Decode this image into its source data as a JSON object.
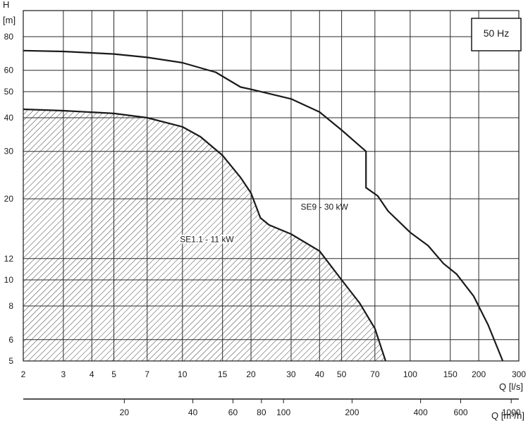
{
  "chart_data": {
    "type": "line",
    "x_scale": "log",
    "y_scale": "log",
    "xlim": [
      2,
      300
    ],
    "ylim": [
      5,
      100
    ],
    "grid": true,
    "xlabel": "Q [l/s]",
    "ylabel_top": "H",
    "ylabel_unit": "[m]",
    "x2label": "Q [m³/h]",
    "x_ticks": [
      2,
      3,
      4,
      5,
      7,
      10,
      15,
      20,
      30,
      40,
      50,
      70,
      100,
      150,
      200,
      300
    ],
    "y_ticks": [
      5,
      6,
      8,
      10,
      12,
      20,
      30,
      40,
      50,
      60,
      80
    ],
    "x2_ticks": [
      20,
      40,
      60,
      80,
      100,
      200,
      400,
      600,
      1000
    ],
    "badge": "50 Hz",
    "series": [
      {
        "name": "SE1.1 - 11 kW",
        "hatched": true,
        "points": [
          [
            2,
            43
          ],
          [
            3,
            42.5
          ],
          [
            5,
            41.5
          ],
          [
            7,
            40
          ],
          [
            10,
            37
          ],
          [
            12,
            34
          ],
          [
            15,
            29
          ],
          [
            18,
            24
          ],
          [
            20,
            21
          ],
          [
            22,
            17
          ],
          [
            24,
            16
          ],
          [
            30,
            14.8
          ],
          [
            40,
            12.8
          ],
          [
            50,
            10
          ],
          [
            60,
            8.2
          ],
          [
            70,
            6.6
          ],
          [
            78,
            5
          ]
        ]
      },
      {
        "name": "SE9 - 30 kW",
        "hatched": false,
        "points": [
          [
            2,
            71
          ],
          [
            3,
            70.5
          ],
          [
            5,
            69
          ],
          [
            7,
            67
          ],
          [
            10,
            64
          ],
          [
            14,
            59
          ],
          [
            18,
            52
          ],
          [
            20,
            51
          ],
          [
            30,
            47
          ],
          [
            40,
            42
          ],
          [
            50,
            36
          ],
          [
            64,
            30
          ],
          [
            64,
            22
          ],
          [
            72,
            20.5
          ],
          [
            80,
            18
          ],
          [
            100,
            15
          ],
          [
            120,
            13.4
          ],
          [
            140,
            11.5
          ],
          [
            160,
            10.5
          ],
          [
            190,
            8.7
          ],
          [
            220,
            6.8
          ],
          [
            255,
            5
          ]
        ]
      }
    ]
  }
}
